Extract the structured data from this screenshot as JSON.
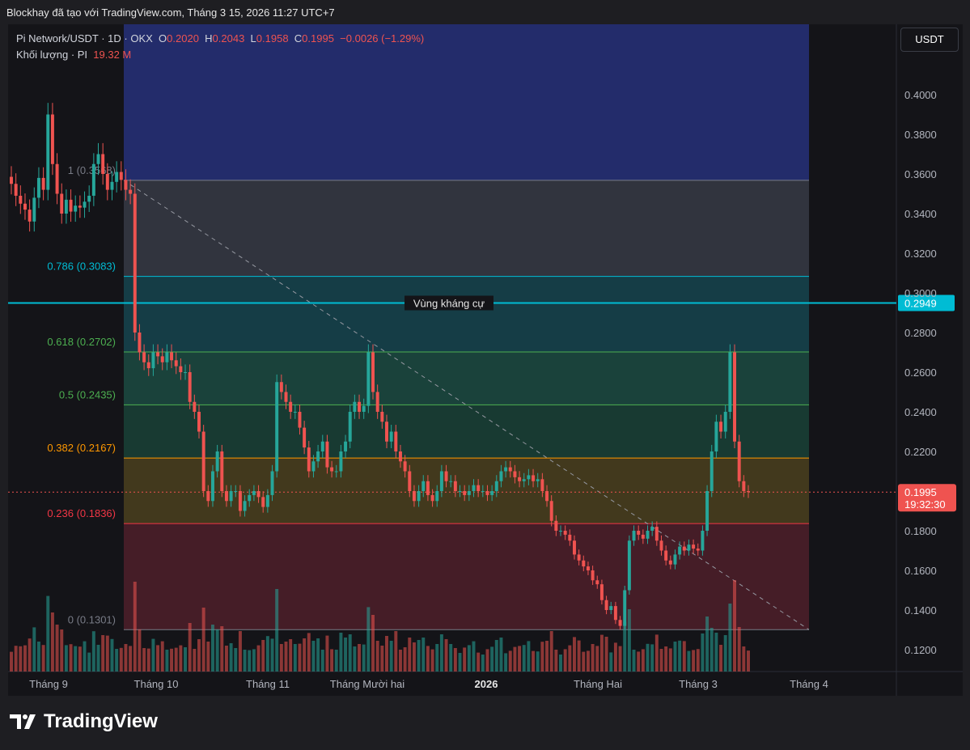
{
  "caption": "Blockhay đã tạo với TradingView.com, Tháng 3 15, 2026 11:27 UTC+7",
  "legend": {
    "symbol": "Pi Network/USDT · 1D · OKX",
    "o_label": "O",
    "o": "0.2020",
    "h_label": "H",
    "h": "0.2043",
    "l_label": "L",
    "l": "0.1958",
    "c_label": "C",
    "c": "0.1995",
    "change": "−0.0026 (−1.29%)",
    "volume_label": "Khối lượng · PI",
    "volume": "19.32 M"
  },
  "unit": "USDT",
  "brand": "TradingView",
  "colors": {
    "up": "#26a69a",
    "down": "#ef5350",
    "resistance": "#00bcd4"
  },
  "chart_data": {
    "type": "candlestick",
    "y_ticks": [
      "0.4000",
      "0.3800",
      "0.3600",
      "0.3400",
      "0.3200",
      "0.3000",
      "0.2800",
      "0.2600",
      "0.2400",
      "0.2200",
      "0.1800",
      "0.1600",
      "0.1400",
      "0.1200"
    ],
    "x_ticks": [
      "Tháng 9",
      "Tháng 10",
      "Tháng 11",
      "Tháng Mười hai",
      "2026",
      "Tháng Hai",
      "Tháng 3",
      "Tháng 4"
    ],
    "ylim": [
      0.1,
      0.41
    ],
    "fib_levels": [
      {
        "label": "1 (0.3568)",
        "value": 0.3568,
        "color": "#787b86"
      },
      {
        "label": "0.786 (0.3083)",
        "value": 0.3083,
        "color": "#00bcd4"
      },
      {
        "label": "0.618 (0.2702)",
        "value": 0.2702,
        "color": "#4caf50"
      },
      {
        "label": "0.5 (0.2435)",
        "value": 0.2435,
        "color": "#4caf50"
      },
      {
        "label": "0.382 (0.2167)",
        "value": 0.2167,
        "color": "#ff9800"
      },
      {
        "label": "0.236 (0.1836)",
        "value": 0.1836,
        "color": "#f23645"
      },
      {
        "label": "0 (0.1301)",
        "value": 0.1301,
        "color": "#787b86"
      }
    ],
    "resistance": {
      "label": "Vùng kháng cự",
      "value": 0.2949,
      "price_label": "0.2949"
    },
    "last_price": {
      "value": 0.1995,
      "label": "0.1995",
      "timer": "19:32:30"
    },
    "closes": [
      0.355,
      0.349,
      0.345,
      0.342,
      0.336,
      0.348,
      0.358,
      0.352,
      0.39,
      0.365,
      0.35,
      0.34,
      0.347,
      0.341,
      0.344,
      0.343,
      0.346,
      0.349,
      0.365,
      0.37,
      0.36,
      0.352,
      0.356,
      0.361,
      0.357,
      0.352,
      0.35,
      0.28,
      0.27,
      0.265,
      0.262,
      0.27,
      0.268,
      0.265,
      0.27,
      0.266,
      0.263,
      0.26,
      0.26,
      0.245,
      0.24,
      0.23,
      0.2,
      0.195,
      0.21,
      0.22,
      0.2,
      0.195,
      0.2,
      0.2,
      0.19,
      0.195,
      0.198,
      0.2,
      0.197,
      0.192,
      0.198,
      0.21,
      0.255,
      0.25,
      0.245,
      0.24,
      0.24,
      0.232,
      0.222,
      0.21,
      0.215,
      0.22,
      0.225,
      0.212,
      0.21,
      0.21,
      0.22,
      0.225,
      0.24,
      0.245,
      0.24,
      0.243,
      0.27,
      0.25,
      0.24,
      0.235,
      0.225,
      0.23,
      0.22,
      0.215,
      0.21,
      0.2,
      0.195,
      0.2,
      0.205,
      0.198,
      0.195,
      0.2,
      0.21,
      0.205,
      0.205,
      0.2,
      0.2,
      0.198,
      0.2,
      0.203,
      0.2,
      0.2,
      0.198,
      0.2,
      0.205,
      0.21,
      0.212,
      0.21,
      0.207,
      0.205,
      0.206,
      0.208,
      0.205,
      0.206,
      0.2,
      0.195,
      0.185,
      0.18,
      0.18,
      0.178,
      0.175,
      0.168,
      0.165,
      0.162,
      0.16,
      0.155,
      0.153,
      0.145,
      0.14,
      0.142,
      0.135,
      0.132,
      0.15,
      0.175,
      0.18,
      0.178,
      0.176,
      0.18,
      0.182,
      0.175,
      0.17,
      0.165,
      0.163,
      0.168,
      0.172,
      0.17,
      0.173,
      0.171,
      0.17,
      0.18,
      0.2,
      0.22,
      0.235,
      0.23,
      0.24,
      0.27,
      0.225,
      0.205,
      0.2,
      0.1995
    ]
  }
}
